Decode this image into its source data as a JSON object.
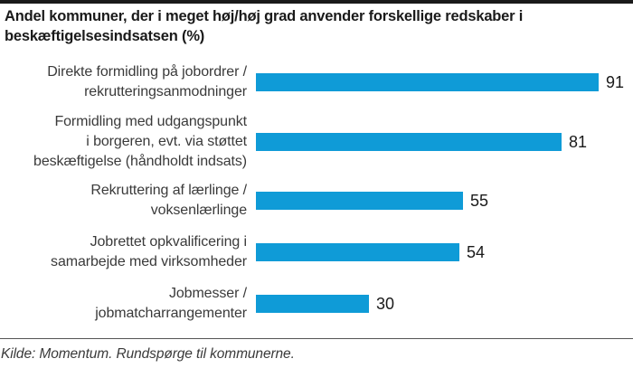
{
  "header": {
    "title": "Andel kommuner, der i meget høj/høj grad anvender forskellige redskaber i beskæftigelsesindsatsen (%)",
    "title_lines": [
      "Andel kommuner, der i meget høj/høj grad anvender forskellige redskaber i",
      "beskæftigelsesindsatsen (%)"
    ]
  },
  "footer": {
    "source": "Kilde: Momentum. Rundspørge til kommunerne."
  },
  "colors": {
    "bar": "#0f9bd7",
    "title_text": "#1a1a1a",
    "label_text": "#3a3a3a",
    "rule": "#555555"
  },
  "chart_data": {
    "type": "bar",
    "orientation": "horizontal",
    "title": "Andel kommuner, der i meget høj/høj grad anvender forskellige redskaber i beskæftigelsesindsatsen (%)",
    "categories": [
      "Direkte formidling på jobordrer / rekrutteringsanmodninger",
      "Formidling med udgangspunkt i borgeren, evt. via støttet beskæftigelse (håndholdt indsats)",
      "Rekruttering af lærlinge / voksenlærlinge",
      "Jobrettet opkvalificering i samarbejde med virksomheder",
      "Jobmesser / jobmatcharrangementer"
    ],
    "category_lines": [
      [
        "Direkte formidling på jobordrer /",
        "rekrutteringsanmodninger"
      ],
      [
        "Formidling med udgangspunkt",
        "i borgeren, evt. via støttet",
        "beskæftigelse (håndholdt indsats)"
      ],
      [
        "Rekruttering af lærlinge /",
        "voksenlærlinge"
      ],
      [
        "Jobrettet opkvalificering i",
        "samarbejde med virksomheder"
      ],
      [
        "Jobmesser /",
        "jobmatcharrangementer"
      ]
    ],
    "values": [
      91,
      81,
      55,
      54,
      30
    ],
    "xlim": [
      0,
      100
    ],
    "value_labels": true,
    "legend": false,
    "grid": false,
    "source": "Kilde: Momentum. Rundspørge til kommunerne."
  }
}
